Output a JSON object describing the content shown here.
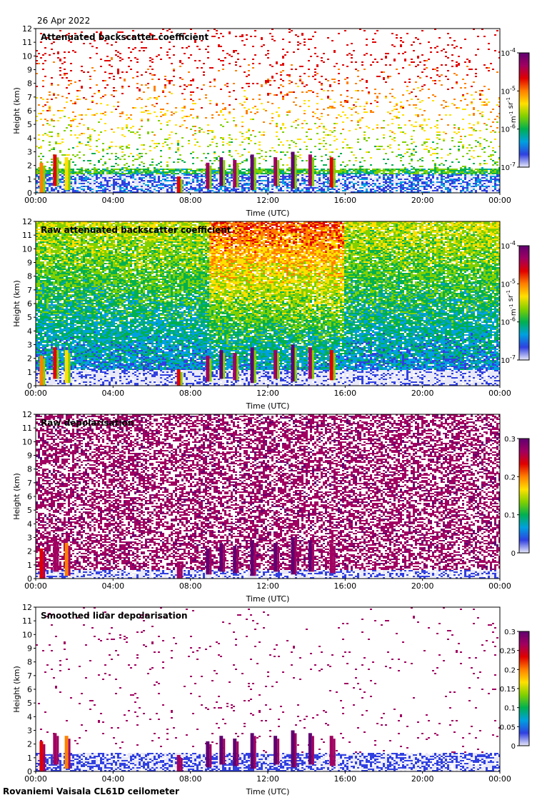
{
  "date": "26 Apr 2022",
  "footer": "Rovaniemi Vaisala CL61D ceilometer",
  "chart_data": [
    {
      "type": "heatmap",
      "title": "Attenuated backscatter coefficient",
      "xlabel": "Time (UTC)",
      "ylabel": "Height (km)",
      "xticks": [
        "00:00",
        "04:00",
        "08:00",
        "12:00",
        "16:00",
        "20:00",
        "00:00"
      ],
      "xlim": [
        0,
        24
      ],
      "ylim": [
        0,
        12
      ],
      "yticks": [
        0,
        1,
        2,
        3,
        4,
        5,
        6,
        7,
        8,
        9,
        10,
        11,
        12
      ],
      "colorbar": {
        "scale": "log",
        "range": [
          1e-07,
          0.0001
        ],
        "ticks": [
          "10-7",
          "10-6",
          "10-5",
          "10-4"
        ],
        "label": "m-1 sr-1"
      },
      "colormap": [
        "#e8e8f8",
        "#3040e0",
        "#00a0e0",
        "#00b050",
        "#80d000",
        "#ffe000",
        "#ff8000",
        "#e00000",
        "#a00060",
        "#600070"
      ],
      "noise": "sparse"
    },
    {
      "type": "heatmap",
      "title": "Raw attenuated backscatter coefficient",
      "xlabel": "Time (UTC)",
      "ylabel": "Height (km)",
      "xticks": [
        "00:00",
        "04:00",
        "08:00",
        "12:00",
        "16:00",
        "20:00",
        "00:00"
      ],
      "xlim": [
        0,
        24
      ],
      "ylim": [
        0,
        12
      ],
      "yticks": [
        0,
        1,
        2,
        3,
        4,
        5,
        6,
        7,
        8,
        9,
        10,
        11,
        12
      ],
      "colorbar": {
        "scale": "log",
        "range": [
          1e-07,
          0.0001
        ],
        "ticks": [
          "10-7",
          "10-6",
          "10-5",
          "10-4"
        ],
        "label": "m-1 sr-1"
      },
      "colormap": [
        "#e8e8f8",
        "#3040e0",
        "#00a0e0",
        "#00b050",
        "#80d000",
        "#ffe000",
        "#ff8000",
        "#e00000",
        "#a00060",
        "#600070"
      ],
      "noise": "dense"
    },
    {
      "type": "heatmap",
      "title": "Raw depolarisation",
      "xlabel": "Time (UTC)",
      "ylabel": "Height (km)",
      "xticks": [
        "00:00",
        "04:00",
        "08:00",
        "12:00",
        "16:00",
        "20:00",
        "00:00"
      ],
      "xlim": [
        0,
        24
      ],
      "ylim": [
        0,
        12
      ],
      "yticks": [
        0,
        1,
        2,
        3,
        4,
        5,
        6,
        7,
        8,
        9,
        10,
        11,
        12
      ],
      "colorbar": {
        "scale": "linear",
        "range": [
          0,
          0.3
        ],
        "ticks": [
          "0",
          "0.1",
          "0.2",
          "0.3"
        ],
        "label": ""
      },
      "colormap": [
        "#e8e8f8",
        "#3040e0",
        "#00a0e0",
        "#00b050",
        "#80d000",
        "#ffe000",
        "#ff8000",
        "#e00000",
        "#a00060",
        "#600070"
      ],
      "noise": "depol"
    },
    {
      "type": "heatmap",
      "title": "Smoothed lidar depolarisation",
      "xlabel": "Time (UTC)",
      "ylabel": "Height (km)",
      "xticks": [
        "00:00",
        "04:00",
        "08:00",
        "12:00",
        "16:00",
        "20:00",
        "00:00"
      ],
      "xlim": [
        0,
        24
      ],
      "ylim": [
        0,
        12
      ],
      "yticks": [
        0,
        1,
        2,
        3,
        4,
        5,
        6,
        7,
        8,
        9,
        10,
        11,
        12
      ],
      "colorbar": {
        "scale": "linear",
        "range": [
          0,
          0.3
        ],
        "ticks": [
          "0",
          "0.05",
          "0.1",
          "0.15",
          "0.2",
          "0.25",
          "0.3"
        ],
        "label": ""
      },
      "colormap": [
        "#e8e8f8",
        "#3040e0",
        "#00a0e0",
        "#00b050",
        "#80d000",
        "#ffe000",
        "#ff8000",
        "#e00000",
        "#a00060",
        "#600070"
      ],
      "noise": "depol-sparse"
    }
  ]
}
